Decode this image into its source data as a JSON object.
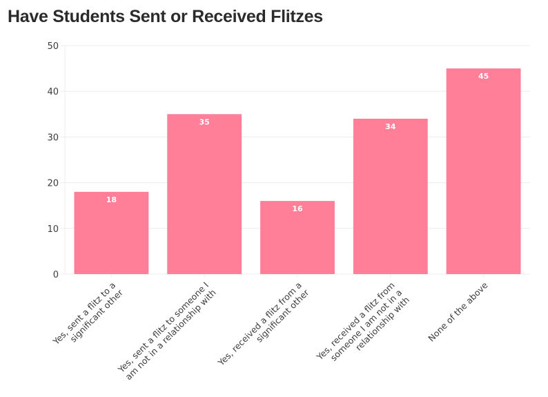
{
  "title": "Have Students Sent or Received Flitzes",
  "colors": {
    "bar": "#FF7F99",
    "grid": "#ececec",
    "text": "#3c3c3c",
    "title": "#2b2b2b"
  },
  "chart_data": {
    "type": "bar",
    "title": "Have Students Sent or Received Flitzes",
    "xlabel": "",
    "ylabel": "",
    "ylim": [
      0,
      50
    ],
    "yticks": [
      0,
      10,
      20,
      30,
      40,
      50
    ],
    "grid": true,
    "legend": null,
    "categories": [
      "Yes, sent a flitz to a significant other",
      "Yes, sent a flitz to someone I am not in a relationship with",
      "Yes, received a flitz from a significant other",
      "Yes, received a flitz from someone I am not in a relationship with",
      "None of the above"
    ],
    "category_label_lines": [
      [
        "Yes, sent a flitz to a",
        "significant other"
      ],
      [
        "Yes, sent a flitz to someone I",
        "am not in a relationship with"
      ],
      [
        "Yes, received a flitz from a",
        "significant other"
      ],
      [
        "Yes, received a flitz from",
        "someone I am not in a",
        "relationship with"
      ],
      [
        "None of the above"
      ]
    ],
    "values": [
      18,
      35,
      16,
      34,
      45
    ],
    "data_labels": [
      "18",
      "35",
      "16",
      "34",
      "45"
    ]
  }
}
